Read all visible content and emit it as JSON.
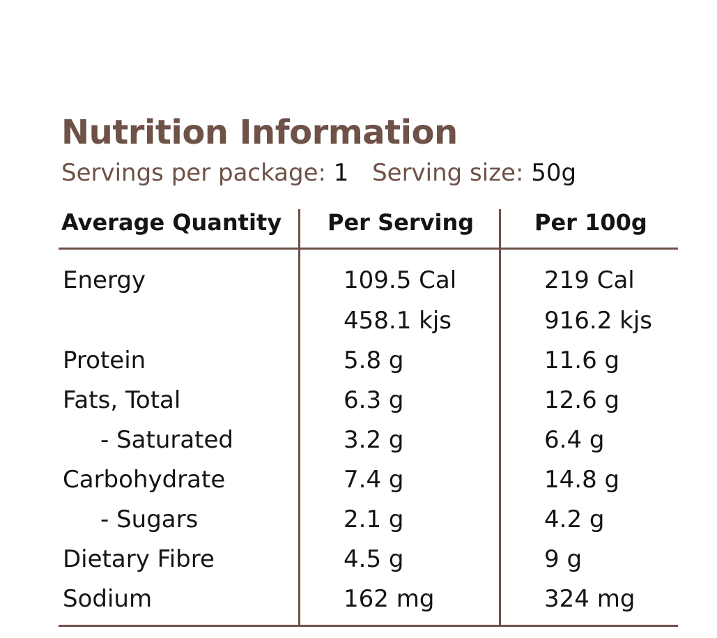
{
  "header": {
    "title": "Nutrition Information",
    "servings_label": "Servings per package:",
    "servings_value": "1",
    "size_label": "Serving size:",
    "size_value": "50g"
  },
  "table": {
    "columns": [
      "Average Quantity",
      "Per Serving",
      "Per 100g"
    ],
    "rows": [
      {
        "name": "Energy",
        "per_serving": "109.5 Cal",
        "per_100g": "219 Cal"
      },
      {
        "name": "",
        "per_serving": "458.1 kjs",
        "per_100g": "916.2 kjs"
      },
      {
        "name": "Protein",
        "per_serving": "5.8 g",
        "per_100g": "11.6 g"
      },
      {
        "name": "Fats, Total",
        "per_serving": "6.3 g",
        "per_100g": "12.6 g"
      },
      {
        "name": "- Saturated",
        "per_serving": "3.2 g",
        "per_100g": "6.4 g"
      },
      {
        "name": "Carbohydrate",
        "per_serving": "7.4 g",
        "per_100g": "14.8 g"
      },
      {
        "name": "- Sugars",
        "per_serving": "2.1 g",
        "per_100g": "4.2 g"
      },
      {
        "name": "Dietary Fibre",
        "per_serving": "4.5 g",
        "per_100g": "9 g"
      },
      {
        "name": "Sodium",
        "per_serving": "162 mg",
        "per_100g": "324 mg"
      }
    ]
  },
  "colors": {
    "accent": "#6e5147",
    "text": "#141414"
  }
}
